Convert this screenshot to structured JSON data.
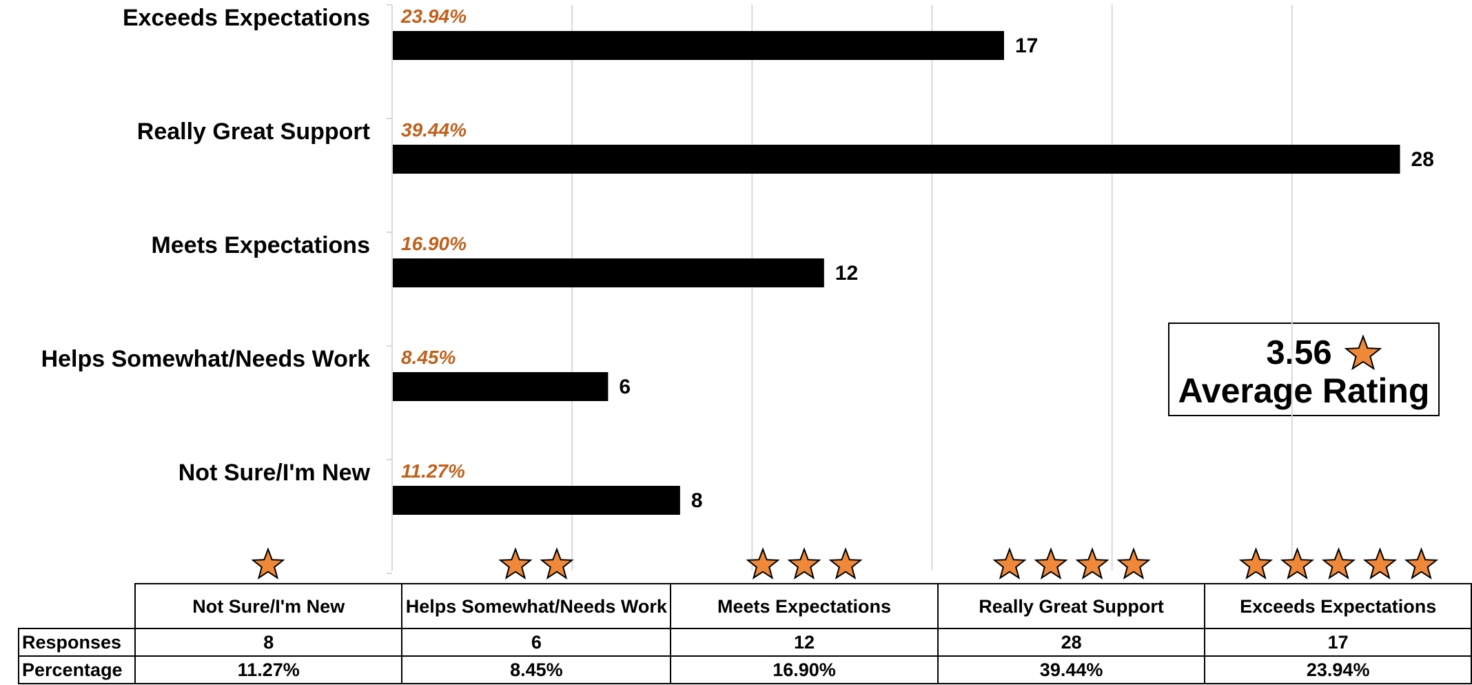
{
  "chart_data": {
    "type": "bar",
    "orientation": "horizontal",
    "categories": [
      "Exceeds Expectations",
      "Really Great Support",
      "Meets Expectations",
      "Helps Somewhat/Needs Work",
      "Not Sure/I'm New"
    ],
    "values": [
      17,
      28,
      12,
      6,
      8
    ],
    "percentages": [
      23.94,
      39.44,
      16.9,
      8.45,
      11.27
    ],
    "percentage_labels": [
      "23.94%",
      "39.44%",
      "16.90%",
      "8.45%",
      "11.27%"
    ],
    "color": "#000000",
    "percentage_color": "#c0601a",
    "xlim": [
      0,
      30
    ],
    "xticks": [
      0,
      5,
      10,
      15,
      20,
      25
    ],
    "grid": true,
    "annotation": {
      "value": 3.56,
      "label": "Average Rating"
    }
  },
  "table": {
    "columns": [
      "Not Sure/I'm New",
      "Helps Somewhat/Needs Work",
      "Meets Expectations",
      "Really Great Support",
      "Exceeds Expectations"
    ],
    "rows": [
      {
        "label": "Responses",
        "cells": [
          "8",
          "6",
          "12",
          "28",
          "17"
        ]
      },
      {
        "label": "Percentage",
        "cells": [
          "11.27%",
          "8.45%",
          "16.90%",
          "39.44%",
          "23.94%"
        ]
      }
    ]
  }
}
